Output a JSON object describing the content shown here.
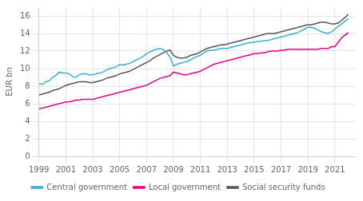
{
  "chart_data": {
    "type": "line",
    "ylabel": "EUR bn",
    "x": [
      1999,
      1999.25,
      1999.5,
      1999.75,
      2000,
      2000.25,
      2000.5,
      2000.75,
      2001,
      2001.25,
      2001.5,
      2001.75,
      2002,
      2002.25,
      2002.5,
      2002.75,
      2003,
      2003.25,
      2003.5,
      2003.75,
      2004,
      2004.25,
      2004.5,
      2004.75,
      2005,
      2005.25,
      2005.5,
      2005.75,
      2006,
      2006.25,
      2006.5,
      2006.75,
      2007,
      2007.25,
      2007.5,
      2007.75,
      2008,
      2008.25,
      2008.5,
      2008.75,
      2009,
      2009.25,
      2009.5,
      2009.75,
      2010,
      2010.25,
      2010.5,
      2010.75,
      2011,
      2011.25,
      2011.5,
      2011.75,
      2012,
      2012.25,
      2012.5,
      2012.75,
      2013,
      2013.25,
      2013.5,
      2013.75,
      2014,
      2014.25,
      2014.5,
      2014.75,
      2015,
      2015.25,
      2015.5,
      2015.75,
      2016,
      2016.25,
      2016.5,
      2016.75,
      2017,
      2017.25,
      2017.5,
      2017.75,
      2018,
      2018.25,
      2018.5,
      2018.75,
      2019,
      2019.25,
      2019.5,
      2019.75,
      2020,
      2020.25,
      2020.5,
      2020.75,
      2021,
      2021.25,
      2021.5,
      2021.75,
      2022
    ],
    "series": [
      {
        "name": "Central government",
        "color": "#3ab0d8",
        "values": [
          8.3,
          8.2,
          8.5,
          8.6,
          9.0,
          9.2,
          9.6,
          9.5,
          9.5,
          9.4,
          9.1,
          9.0,
          9.3,
          9.4,
          9.4,
          9.3,
          9.3,
          9.4,
          9.5,
          9.6,
          9.8,
          10.0,
          10.1,
          10.2,
          10.5,
          10.4,
          10.5,
          10.6,
          10.8,
          11.0,
          11.2,
          11.4,
          11.7,
          11.9,
          12.1,
          12.2,
          12.3,
          12.2,
          11.8,
          11.3,
          10.3,
          10.5,
          10.6,
          10.7,
          10.8,
          11.0,
          11.2,
          11.4,
          11.5,
          11.8,
          12.0,
          12.1,
          12.1,
          12.2,
          12.3,
          12.3,
          12.3,
          12.4,
          12.5,
          12.6,
          12.7,
          12.8,
          12.9,
          13.0,
          13.0,
          13.1,
          13.1,
          13.2,
          13.2,
          13.3,
          13.4,
          13.5,
          13.6,
          13.7,
          13.8,
          13.9,
          14.0,
          14.1,
          14.3,
          14.5,
          14.7,
          14.7,
          14.6,
          14.4,
          14.2,
          14.1,
          14.0,
          14.2,
          14.5,
          14.8,
          15.1,
          15.4,
          15.7
        ]
      },
      {
        "name": "Local government",
        "color": "#e8008a",
        "values": [
          5.4,
          5.5,
          5.6,
          5.7,
          5.8,
          5.9,
          6.0,
          6.1,
          6.2,
          6.2,
          6.3,
          6.4,
          6.4,
          6.5,
          6.5,
          6.5,
          6.5,
          6.6,
          6.7,
          6.8,
          6.9,
          7.0,
          7.1,
          7.2,
          7.3,
          7.4,
          7.5,
          7.6,
          7.7,
          7.8,
          7.9,
          8.0,
          8.1,
          8.3,
          8.5,
          8.7,
          8.9,
          9.0,
          9.1,
          9.2,
          9.6,
          9.5,
          9.4,
          9.3,
          9.3,
          9.4,
          9.5,
          9.6,
          9.7,
          9.9,
          10.1,
          10.3,
          10.5,
          10.6,
          10.7,
          10.8,
          10.9,
          11.0,
          11.1,
          11.2,
          11.3,
          11.4,
          11.5,
          11.6,
          11.7,
          11.7,
          11.8,
          11.8,
          11.9,
          12.0,
          12.0,
          12.0,
          12.1,
          12.1,
          12.2,
          12.2,
          12.2,
          12.2,
          12.2,
          12.2,
          12.2,
          12.2,
          12.2,
          12.2,
          12.3,
          12.3,
          12.3,
          12.5,
          12.5,
          13.0,
          13.5,
          13.8,
          14.1
        ]
      },
      {
        "name": "Social security funds",
        "color": "#555555",
        "values": [
          7.0,
          7.1,
          7.2,
          7.3,
          7.5,
          7.6,
          7.7,
          7.9,
          8.1,
          8.2,
          8.3,
          8.4,
          8.5,
          8.5,
          8.5,
          8.4,
          8.4,
          8.5,
          8.6,
          8.7,
          8.9,
          9.0,
          9.1,
          9.2,
          9.4,
          9.5,
          9.6,
          9.7,
          9.9,
          10.1,
          10.3,
          10.5,
          10.7,
          10.9,
          11.2,
          11.4,
          11.6,
          11.8,
          12.0,
          12.1,
          11.5,
          11.3,
          11.2,
          11.2,
          11.3,
          11.5,
          11.6,
          11.7,
          11.9,
          12.1,
          12.3,
          12.4,
          12.5,
          12.6,
          12.7,
          12.7,
          12.8,
          12.9,
          13.0,
          13.1,
          13.2,
          13.3,
          13.4,
          13.5,
          13.6,
          13.7,
          13.8,
          13.9,
          14.0,
          14.0,
          14.0,
          14.1,
          14.2,
          14.3,
          14.4,
          14.5,
          14.6,
          14.7,
          14.8,
          14.9,
          15.0,
          15.0,
          15.1,
          15.2,
          15.3,
          15.3,
          15.2,
          15.1,
          15.1,
          15.2,
          15.5,
          15.8,
          16.2
        ]
      }
    ],
    "xlim": [
      1999,
      2022.5
    ],
    "ylim": [
      0,
      17
    ],
    "xticks": [
      1999,
      2001,
      2003,
      2005,
      2007,
      2009,
      2011,
      2013,
      2015,
      2017,
      2019,
      2021
    ],
    "yticks": [
      0,
      2,
      4,
      6,
      8,
      10,
      12,
      14,
      16
    ],
    "grid": true,
    "legend": "bottom"
  }
}
